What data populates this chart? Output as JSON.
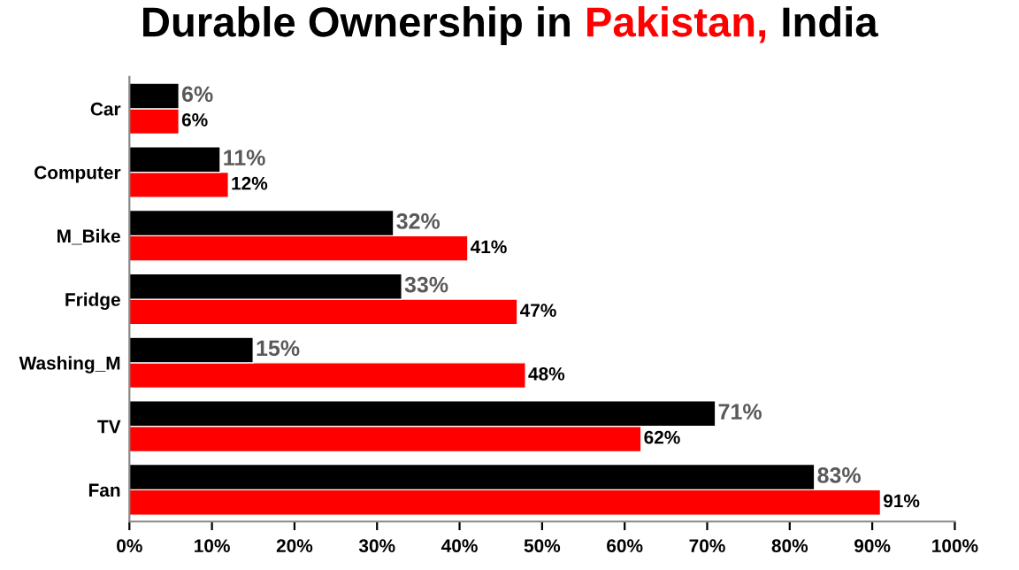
{
  "chart_data": {
    "type": "bar",
    "orientation": "horizontal",
    "title": "Durable Ownership in",
    "categories": [
      "Car",
      "Computer",
      "M_Bike",
      "Fridge",
      "Washing_M",
      "TV",
      "Fan"
    ],
    "series": [
      {
        "name": "Pakistan,",
        "color": "#ff0000",
        "values": [
          6,
          12,
          41,
          47,
          48,
          62,
          91
        ],
        "value_labels": [
          "6%",
          "12%",
          "41%",
          "47%",
          "48%",
          "62%",
          "91%"
        ]
      },
      {
        "name": "India",
        "color": "#000000",
        "values": [
          6,
          11,
          32,
          33,
          15,
          71,
          83
        ],
        "value_labels": [
          "6%",
          "11%",
          "32%",
          "33%",
          "15%",
          "71%",
          "83%"
        ]
      }
    ],
    "xlim": [
      0,
      100
    ],
    "xticks": [
      {
        "value": 0,
        "label": "0%"
      },
      {
        "value": 10,
        "label": "10%"
      },
      {
        "value": 20,
        "label": "20%"
      },
      {
        "value": 30,
        "label": "30%"
      },
      {
        "value": 40,
        "label": "40%"
      },
      {
        "value": 50,
        "label": "50%"
      },
      {
        "value": 60,
        "label": "60%"
      },
      {
        "value": 70,
        "label": "70%"
      },
      {
        "value": 80,
        "label": "80%"
      },
      {
        "value": 90,
        "label": "90%"
      },
      {
        "value": 100,
        "label": "100%"
      }
    ],
    "grid": false,
    "legend": false
  }
}
